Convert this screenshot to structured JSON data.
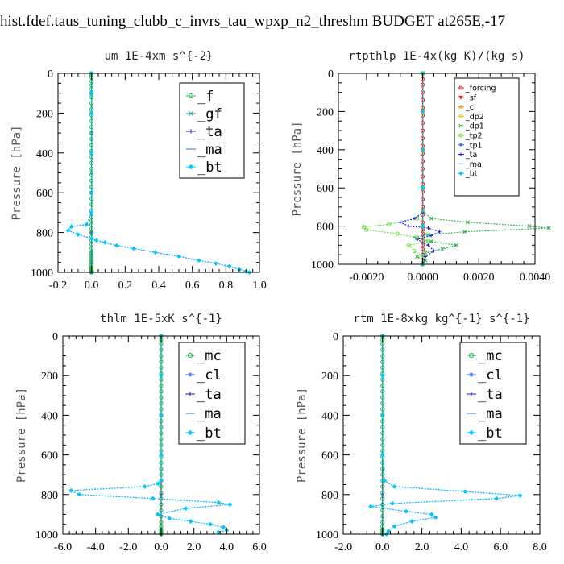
{
  "figure_title": "hist.fdef.taus_tuning_clubb_c_invrs_tau_wpxp_n2_threshm  BUDGET at265E,-17",
  "chart_data": [
    {
      "type": "line",
      "title": "um  1E-4xm s^{-2}",
      "ylabel": "Pressure [hPa]",
      "xlim": [
        -0.2,
        1.0
      ],
      "ylim": [
        1000,
        0
      ],
      "xticks": [
        "-0.2",
        "0.0",
        "0.2",
        "0.4",
        "0.6",
        "0.8",
        "1.0"
      ],
      "yticks": [
        "0",
        "200",
        "400",
        "600",
        "800",
        "1000"
      ],
      "grid": false,
      "legend": "top-right",
      "series": [
        {
          "name": "_f",
          "color": "#22b14c",
          "marker": "circle",
          "x": [
            0,
            0,
            0,
            0,
            0,
            0,
            0,
            0,
            0,
            0,
            0,
            0,
            0,
            0,
            0,
            0,
            0,
            0,
            0,
            0,
            0,
            0,
            0,
            0,
            0,
            0,
            0,
            0,
            0,
            0,
            0,
            0,
            0,
            0,
            0,
            0,
            0,
            0,
            0,
            0,
            0,
            0,
            0,
            0,
            0,
            0,
            0,
            0,
            0,
            0,
            0,
            0,
            0,
            0,
            0
          ],
          "y": [
            0,
            10,
            20,
            40,
            60,
            80,
            100,
            120,
            150,
            180,
            210,
            240,
            270,
            300,
            330,
            360,
            390,
            420,
            450,
            480,
            510,
            540,
            570,
            600,
            630,
            660,
            690,
            720,
            740,
            760,
            780,
            800,
            820,
            840,
            860,
            880,
            900,
            910,
            920,
            930,
            940,
            950,
            960,
            970,
            975,
            980,
            985,
            990,
            992,
            994,
            996,
            998,
            999,
            1000,
            1000
          ]
        },
        {
          "name": "_gf",
          "color": "#1a9a8a",
          "marker": "x",
          "x": [
            0,
            0,
            0,
            0,
            0,
            0,
            0,
            0,
            0,
            0,
            0,
            0
          ],
          "y": [
            0,
            100,
            200,
            300,
            400,
            500,
            600,
            700,
            800,
            900,
            950,
            1000
          ]
        },
        {
          "name": "_ta",
          "color": "#1a1ad0",
          "marker": "plus",
          "x": [
            0,
            0,
            0,
            0,
            0,
            0,
            -0.03,
            -0.12,
            -0.14,
            -0.08,
            0.0,
            0.03,
            0.08,
            0.15,
            0.25,
            0.38,
            0.52,
            0.64,
            0.74,
            0.82,
            0.88,
            0.92,
            0.94
          ],
          "y": [
            0,
            100,
            200,
            400,
            600,
            700,
            760,
            770,
            790,
            810,
            830,
            840,
            850,
            865,
            880,
            900,
            920,
            940,
            955,
            970,
            985,
            995,
            1000
          ]
        },
        {
          "name": "_ma",
          "color": "#3a6fd8",
          "marker": "dash",
          "x": [
            0,
            0,
            0,
            0,
            0,
            0
          ],
          "y": [
            0,
            200,
            400,
            600,
            800,
            1000
          ]
        },
        {
          "name": "_bt",
          "color": "#00c8ff",
          "marker": "diamond",
          "x": [
            0,
            0,
            0,
            0,
            0,
            0,
            -0.03,
            -0.12,
            -0.14,
            -0.08,
            0.0,
            0.03,
            0.08,
            0.15,
            0.25,
            0.38,
            0.52,
            0.64,
            0.74,
            0.82,
            0.88,
            0.92,
            0.94
          ],
          "y": [
            0,
            100,
            200,
            400,
            600,
            700,
            760,
            770,
            790,
            810,
            830,
            840,
            850,
            865,
            880,
            900,
            920,
            940,
            955,
            970,
            985,
            995,
            1000
          ]
        }
      ]
    },
    {
      "type": "line",
      "title": "rtpthlp  1E-4x(kg K)/(kg s)",
      "ylabel": "Pressure [hPa]",
      "xlim": [
        -0.003,
        0.004
      ],
      "ylim": [
        1000,
        0
      ],
      "xticks": [
        "-0.0020",
        "0.0000",
        "0.0020",
        "0.0040"
      ],
      "xtick_values": [
        -0.002,
        0.0,
        0.002,
        0.004
      ],
      "yticks": [
        "0",
        "200",
        "400",
        "600",
        "800",
        "1000"
      ],
      "grid": false,
      "legend": "top-right",
      "series": [
        {
          "name": "_forcing",
          "color": "#e8261e",
          "marker": "circle",
          "x": [
            0,
            0,
            0,
            0,
            0,
            0,
            0,
            0,
            0,
            0,
            0,
            0,
            0,
            0,
            0,
            0,
            0,
            0,
            0,
            0,
            0,
            0,
            0,
            0,
            0,
            0,
            0,
            0,
            0,
            0,
            0
          ],
          "y": [
            0,
            30,
            60,
            100,
            140,
            180,
            220,
            260,
            300,
            340,
            380,
            420,
            460,
            500,
            540,
            580,
            620,
            660,
            700,
            740,
            780,
            800,
            820,
            840,
            860,
            880,
            900,
            920,
            950,
            980,
            1000
          ]
        },
        {
          "name": "_sf",
          "color": "#e8261e",
          "marker": "tri-down",
          "x": [
            0,
            0,
            0,
            0,
            0,
            0
          ],
          "y": [
            0,
            200,
            400,
            600,
            800,
            1000
          ]
        },
        {
          "name": "_cl",
          "color": "#f0a018",
          "marker": "tri-up",
          "x": [
            0,
            0,
            0,
            0,
            0,
            0
          ],
          "y": [
            0,
            200,
            400,
            600,
            800,
            1000
          ]
        },
        {
          "name": "_dp2",
          "color": "#d8c818",
          "marker": "circle",
          "x": [
            0,
            0,
            0,
            0,
            0,
            0
          ],
          "y": [
            0,
            200,
            400,
            600,
            800,
            1000
          ]
        },
        {
          "name": "_dp1",
          "color": "#22b14c",
          "marker": "x",
          "x": [
            0,
            0,
            0,
            0.0003,
            0.0016,
            0.0038,
            0.0045,
            0.0015,
            0.0002,
            -0.0003,
            0.0003,
            0.0012,
            0.0007,
            0.0001,
            -0.0002,
            0.0001,
            0
          ],
          "y": [
            0,
            600,
            720,
            760,
            780,
            800,
            810,
            830,
            845,
            860,
            880,
            900,
            920,
            940,
            960,
            980,
            1000
          ]
        },
        {
          "name": "_tp2",
          "color": "#66dd44",
          "marker": "circle",
          "x": [
            0,
            0,
            0,
            -0.0002,
            -0.0012,
            -0.0021,
            -0.002,
            -0.0009,
            -0.0002,
            0.0002,
            -0.0005,
            -0.0003,
            0,
            0
          ],
          "y": [
            0,
            600,
            720,
            760,
            790,
            805,
            820,
            840,
            860,
            880,
            900,
            930,
            960,
            1000
          ]
        },
        {
          "name": "_tp1",
          "color": "#2a72ff",
          "marker": "star",
          "x": [
            0,
            0,
            0,
            0,
            0,
            0
          ],
          "y": [
            0,
            200,
            400,
            600,
            800,
            1000
          ]
        },
        {
          "name": "_ta",
          "color": "#1a1ad0",
          "marker": "plus",
          "x": [
            0,
            0,
            0,
            -0.0003,
            -0.0008,
            -0.0005,
            0.0002,
            0.0006,
            0.0003,
            -0.0002,
            0.0002,
            0.0004,
            0.0001,
            0
          ],
          "y": [
            0,
            600,
            730,
            760,
            780,
            800,
            810,
            830,
            850,
            870,
            900,
            930,
            960,
            1000
          ]
        },
        {
          "name": "_ma",
          "color": "#3a6fd8",
          "marker": "dash",
          "x": [
            0,
            0,
            0,
            0,
            0,
            0
          ],
          "y": [
            0,
            200,
            400,
            600,
            800,
            1000
          ]
        },
        {
          "name": "_bt",
          "color": "#00c8ff",
          "marker": "diamond",
          "x": [
            0,
            0,
            0,
            0,
            0,
            0
          ],
          "y": [
            0,
            200,
            400,
            600,
            800,
            1000
          ]
        }
      ]
    },
    {
      "type": "line",
      "title": "thlm  1E-5xK s^{-1}",
      "ylabel": "Pressure [hPa]",
      "xlim": [
        -6.0,
        6.0
      ],
      "ylim": [
        1000,
        0
      ],
      "xticks": [
        "-6.0",
        "-4.0",
        "-2.0",
        "0.0",
        "2.0",
        "4.0",
        "6.0"
      ],
      "yticks": [
        "0",
        "200",
        "400",
        "600",
        "800",
        "1000"
      ],
      "grid": false,
      "legend": "top-right",
      "series": [
        {
          "name": "_mc",
          "color": "#22b14c",
          "marker": "circle",
          "x": [
            0,
            0,
            0,
            0,
            0,
            0,
            0,
            0,
            0,
            0,
            0,
            0,
            0,
            0,
            0,
            0,
            0,
            0,
            0,
            0,
            0,
            0,
            0,
            0,
            0,
            0,
            0,
            0,
            0,
            0,
            0,
            0,
            0,
            0,
            0,
            0,
            0,
            0,
            0,
            0
          ],
          "y": [
            0,
            20,
            40,
            70,
            100,
            130,
            160,
            190,
            220,
            250,
            280,
            310,
            340,
            370,
            400,
            430,
            460,
            490,
            520,
            550,
            580,
            610,
            640,
            670,
            700,
            730,
            760,
            790,
            820,
            850,
            880,
            910,
            940,
            960,
            975,
            985,
            992,
            996,
            998,
            1000
          ]
        },
        {
          "name": "_cl",
          "color": "#2a72ff",
          "marker": "star",
          "x": [
            0,
            0,
            0,
            0,
            0,
            -0.2,
            -1.0,
            -5.5,
            -5.0,
            -0.5,
            3.5,
            4.2,
            1.5,
            -0.2,
            0.5,
            1.8,
            3.0,
            3.8,
            4.0,
            3.5
          ],
          "y": [
            0,
            200,
            400,
            600,
            730,
            745,
            760,
            780,
            800,
            820,
            840,
            850,
            870,
            900,
            920,
            935,
            950,
            965,
            980,
            990
          ]
        },
        {
          "name": "_ta",
          "color": "#1a1ad0",
          "marker": "plus",
          "x": [
            0,
            0,
            0,
            0,
            0,
            0
          ],
          "y": [
            0,
            200,
            400,
            600,
            800,
            1000
          ]
        },
        {
          "name": "_ma",
          "color": "#3a6fd8",
          "marker": "dash",
          "x": [
            0,
            0,
            0,
            0,
            0,
            0
          ],
          "y": [
            0,
            200,
            400,
            600,
            800,
            1000
          ]
        },
        {
          "name": "_bt",
          "color": "#00c8ff",
          "marker": "diamond",
          "x": [
            0,
            0,
            0,
            0,
            0,
            -0.2,
            -1.0,
            -5.5,
            -5.0,
            -0.5,
            3.5,
            4.2,
            1.5,
            -0.2,
            0.5,
            1.8,
            3.0,
            3.8,
            4.0,
            3.5
          ],
          "y": [
            0,
            200,
            400,
            600,
            730,
            745,
            760,
            780,
            800,
            820,
            840,
            850,
            870,
            900,
            920,
            935,
            950,
            965,
            980,
            990
          ]
        }
      ]
    },
    {
      "type": "line",
      "title": "rtm  1E-8xkg kg^{-1} s^{-1}",
      "ylabel": "Pressure [hPa]",
      "xlim": [
        -2.0,
        8.0
      ],
      "ylim": [
        1000,
        0
      ],
      "xticks": [
        "-2.0",
        "0.0",
        "2.0",
        "4.0",
        "6.0",
        "8.0"
      ],
      "yticks": [
        "0",
        "200",
        "400",
        "600",
        "800",
        "1000"
      ],
      "grid": false,
      "legend": "top-right",
      "series": [
        {
          "name": "_mc",
          "color": "#22b14c",
          "marker": "circle",
          "x": [
            0,
            0,
            0,
            0,
            0,
            0,
            0,
            0,
            0,
            0,
            0,
            0,
            0,
            0,
            0,
            0,
            0,
            0,
            0,
            0,
            0,
            0,
            0,
            0,
            0,
            0,
            0,
            0,
            0,
            0,
            0,
            0,
            0,
            0,
            0,
            0,
            0,
            0,
            0,
            0
          ],
          "y": [
            0,
            20,
            40,
            70,
            100,
            130,
            160,
            190,
            220,
            250,
            280,
            310,
            340,
            370,
            400,
            430,
            460,
            490,
            520,
            550,
            580,
            610,
            640,
            670,
            700,
            730,
            760,
            790,
            820,
            850,
            880,
            910,
            940,
            960,
            975,
            985,
            992,
            996,
            998,
            1000
          ]
        },
        {
          "name": "_cl",
          "color": "#2a72ff",
          "marker": "star",
          "x": [
            0,
            0,
            0,
            0,
            0.1,
            0.6,
            4.2,
            7.0,
            5.8,
            0.5,
            -0.6,
            1.2,
            2.5,
            2.7,
            1.5,
            0.6,
            0.3,
            0.2
          ],
          "y": [
            0,
            200,
            400,
            600,
            730,
            760,
            785,
            805,
            820,
            845,
            860,
            885,
            900,
            915,
            935,
            960,
            985,
            1000
          ]
        },
        {
          "name": "_ta",
          "color": "#1a1ad0",
          "marker": "plus",
          "x": [
            0,
            0,
            0,
            0,
            0,
            0
          ],
          "y": [
            0,
            200,
            400,
            600,
            800,
            1000
          ]
        },
        {
          "name": "_ma",
          "color": "#3a6fd8",
          "marker": "dash",
          "x": [
            0,
            0,
            0,
            0,
            0,
            0
          ],
          "y": [
            0,
            200,
            400,
            600,
            800,
            1000
          ]
        },
        {
          "name": "_bt",
          "color": "#00c8ff",
          "marker": "diamond",
          "x": [
            0,
            0,
            0,
            0,
            0.1,
            0.6,
            4.2,
            7.0,
            5.8,
            0.5,
            -0.6,
            1.2,
            2.5,
            2.7,
            1.5,
            0.6,
            0.3,
            0.2
          ],
          "y": [
            0,
            200,
            400,
            600,
            730,
            760,
            785,
            805,
            820,
            845,
            860,
            885,
            900,
            915,
            935,
            960,
            985,
            1000
          ]
        }
      ]
    }
  ]
}
